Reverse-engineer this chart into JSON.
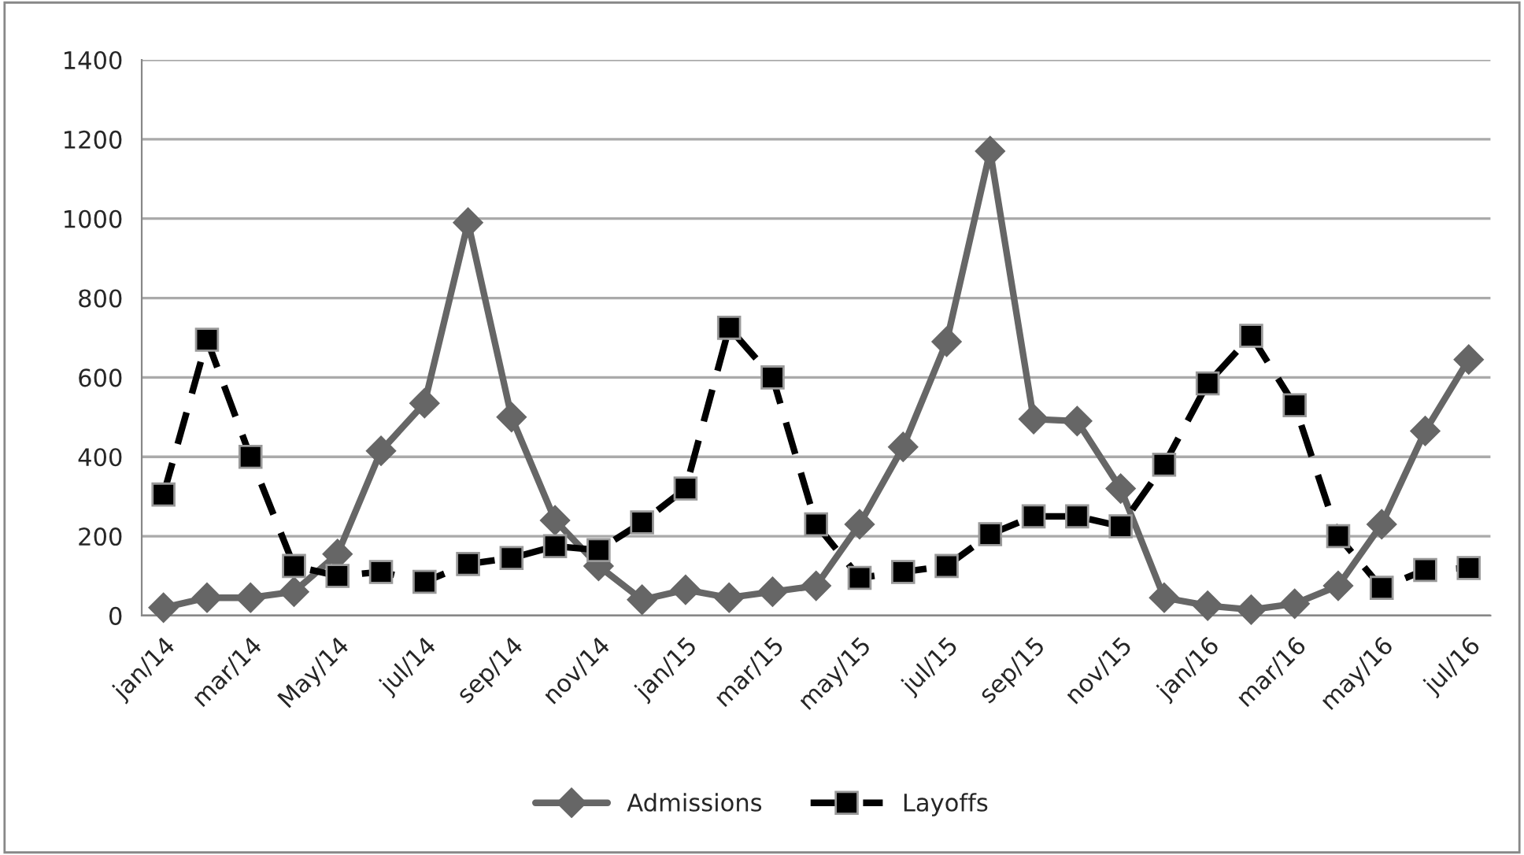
{
  "chart_data": {
    "type": "line",
    "categories": [
      "jan/14",
      null,
      "mar/14",
      null,
      "May/14",
      null,
      "jul/14",
      null,
      "sep/14",
      null,
      "nov/14",
      null,
      "jan/15",
      null,
      "mar/15",
      null,
      "may/15",
      null,
      "jul/15",
      null,
      "sep/15",
      null,
      "nov/15",
      null,
      "jan/16",
      null,
      "mar/16",
      null,
      "may/16",
      null,
      "jul/16"
    ],
    "series": [
      {
        "name": "Admissions",
        "color": "#666666",
        "marker": "diamond",
        "line_style": "solid",
        "values": [
          20,
          45,
          45,
          60,
          155,
          415,
          535,
          990,
          500,
          240,
          125,
          40,
          65,
          45,
          60,
          75,
          230,
          425,
          690,
          1170,
          495,
          490,
          320,
          45,
          25,
          15,
          30,
          75,
          230,
          465,
          645
        ]
      },
      {
        "name": "Layoffs",
        "color": "#000000",
        "marker": "square",
        "line_style": "dashed",
        "values": [
          305,
          695,
          400,
          125,
          100,
          110,
          85,
          130,
          145,
          175,
          165,
          235,
          320,
          725,
          600,
          230,
          95,
          110,
          125,
          205,
          250,
          250,
          225,
          380,
          585,
          705,
          530,
          200,
          70,
          115,
          120
        ]
      }
    ],
    "ylim": [
      0,
      1400
    ],
    "yticks": [
      0,
      200,
      400,
      600,
      800,
      1000,
      1200,
      1400
    ],
    "grid": "y",
    "legend": "bottom"
  }
}
